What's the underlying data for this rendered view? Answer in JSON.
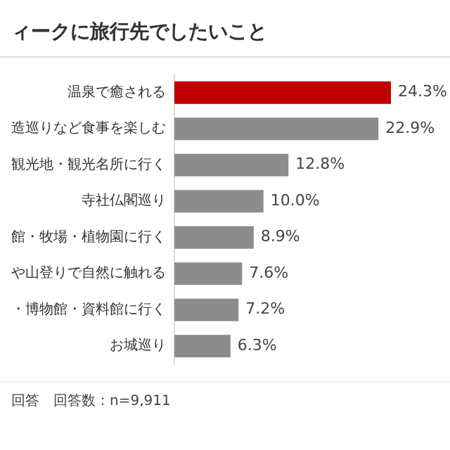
{
  "chart_data": {
    "type": "bar",
    "orientation": "horizontal",
    "title": "ィークに旅行先でしたいこと",
    "categories": [
      "温泉で癒される",
      "造巡りなど食事を楽しむ",
      "観光地・観光名所に行く",
      "寺社仏閣巡り",
      "館・牧場・植物園に行く",
      "や山登りで自然に触れる",
      "・博物館・資料館に行く",
      "お城巡り"
    ],
    "values": [
      24.3,
      22.9,
      12.8,
      10.0,
      8.9,
      7.6,
      7.2,
      6.3
    ],
    "colors": [
      "#c00000",
      "#8c8c8c",
      "#8c8c8c",
      "#8c8c8c",
      "#8c8c8c",
      "#8c8c8c",
      "#8c8c8c",
      "#8c8c8c"
    ],
    "value_labels": [
      "24.3%",
      "22.9%",
      "12.8%",
      "10.0%",
      "8.9%",
      "7.6%",
      "7.2%",
      "6.3%"
    ],
    "annotations": [
      "回答　回答数：n=9,911"
    ],
    "grid": false,
    "legend": false
  }
}
